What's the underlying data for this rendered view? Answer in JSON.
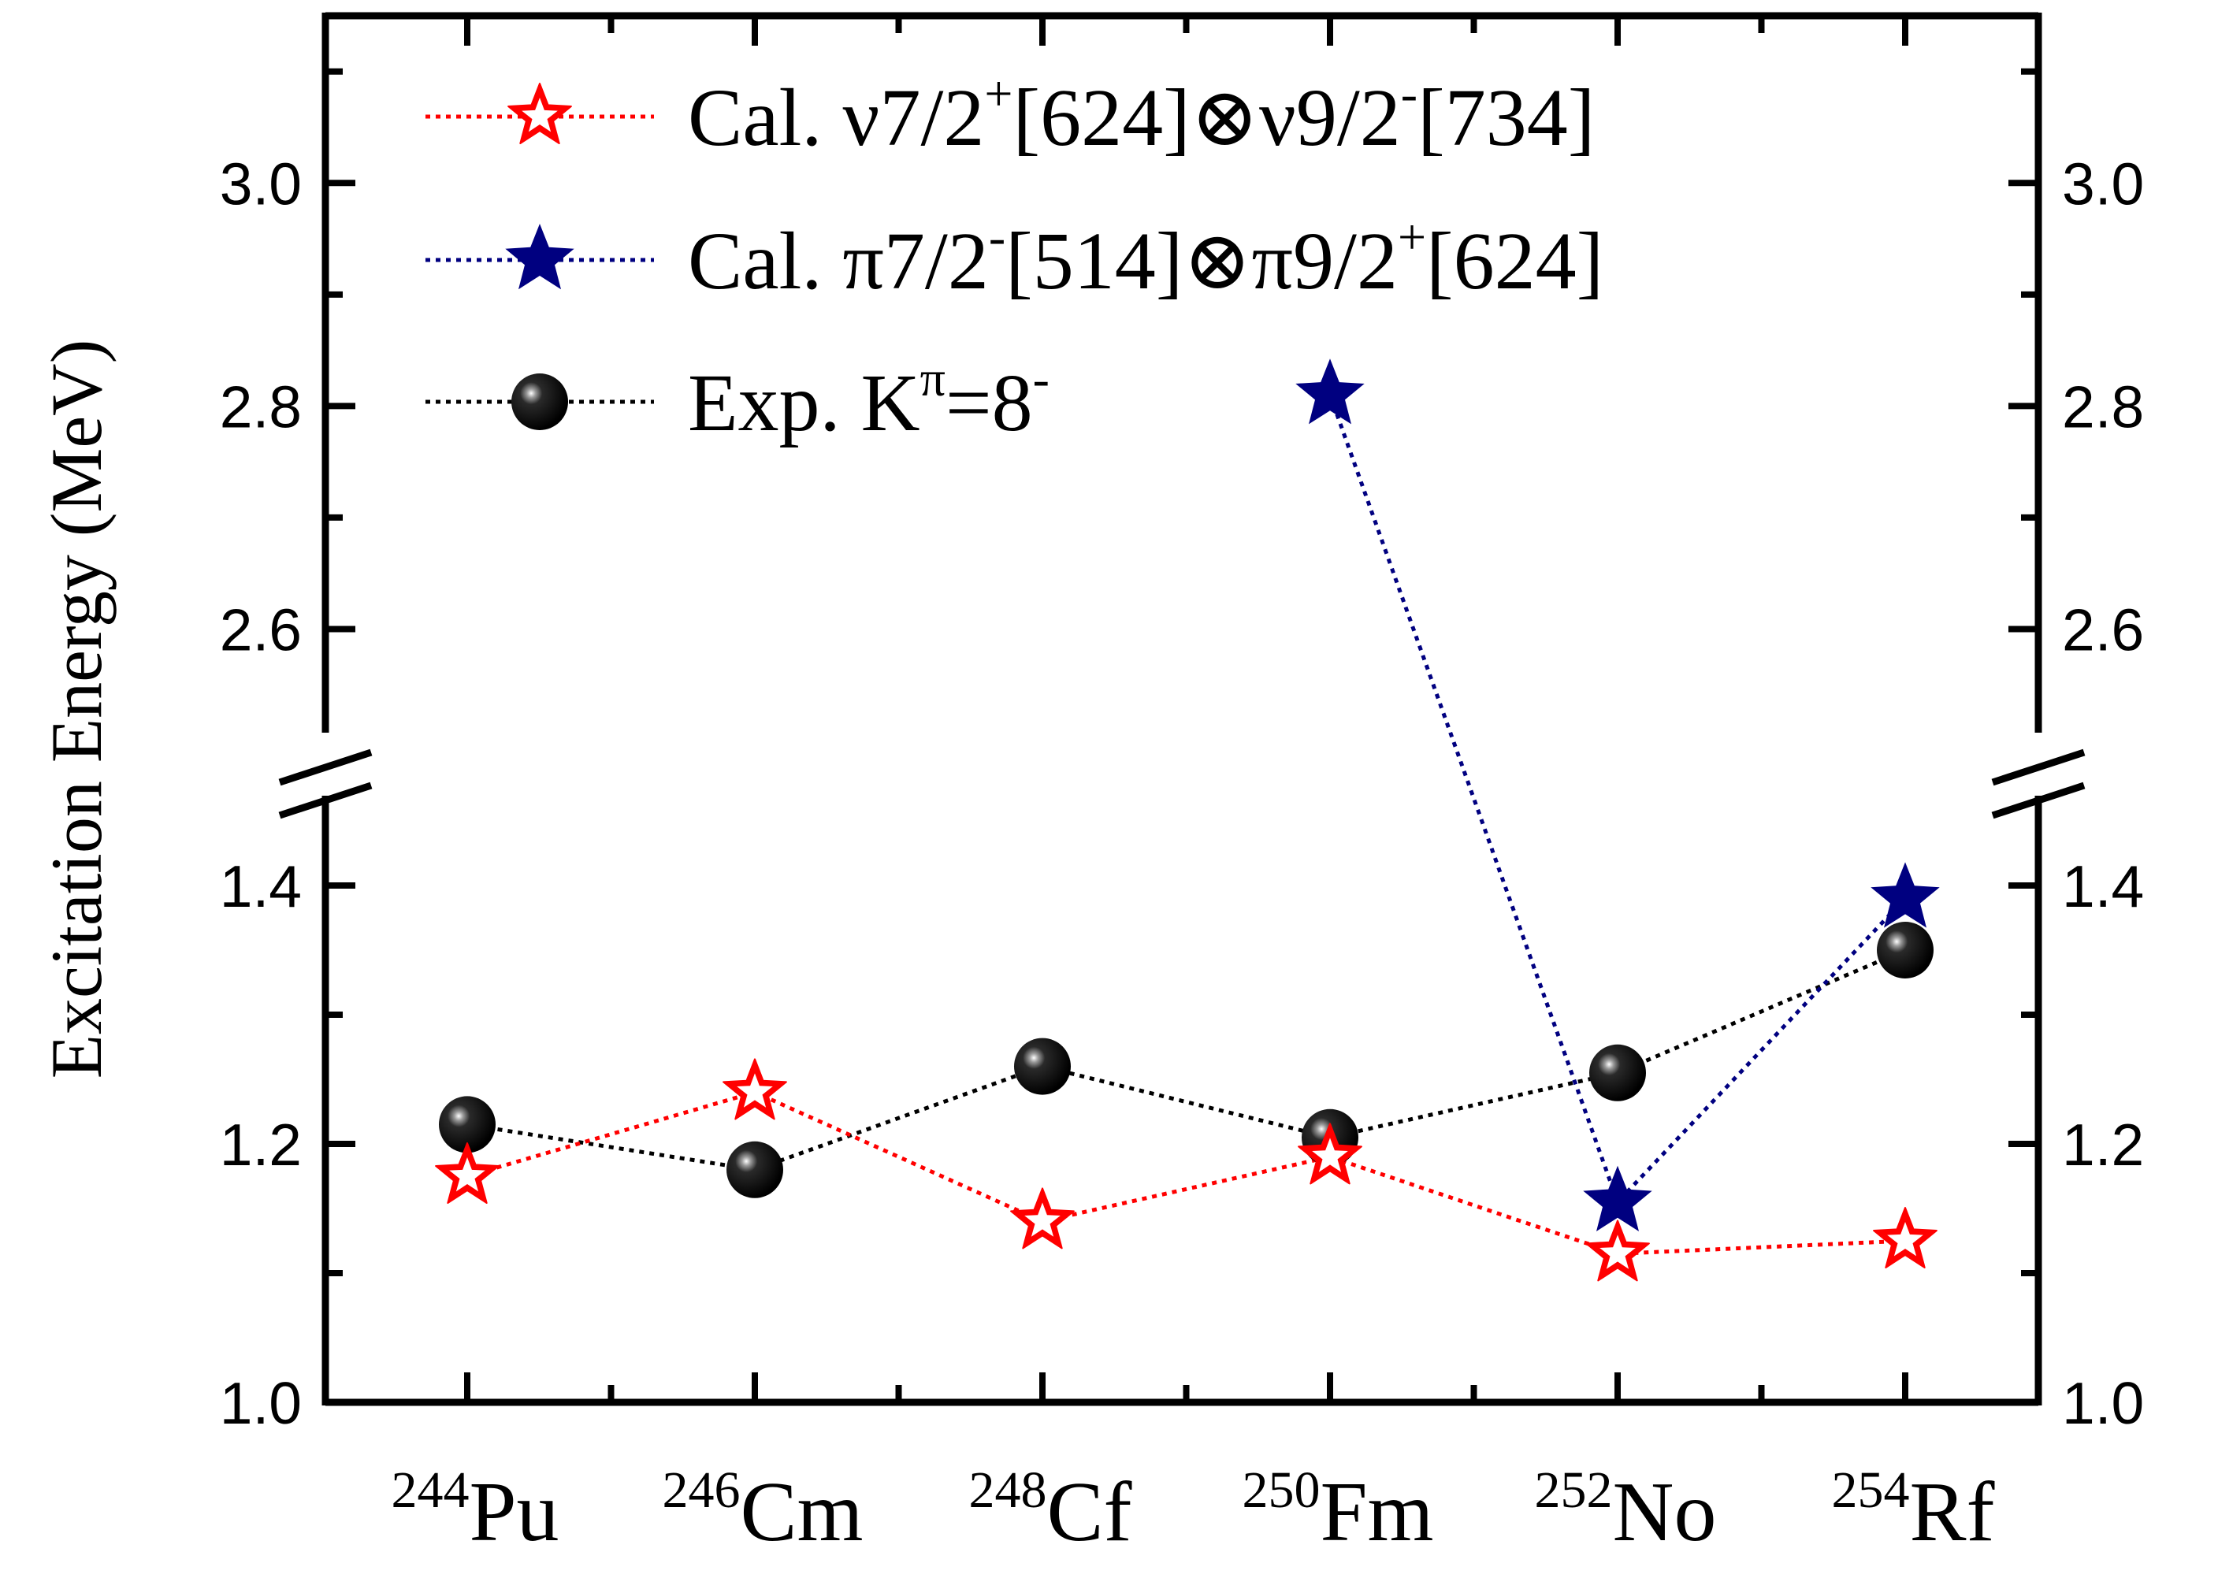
{
  "chart_data": {
    "type": "line",
    "title": "",
    "ylabel": "Excitation Energy (MeV)",
    "xlabel": "",
    "broken_axis": true,
    "lower_range": [
      1.0,
      1.5
    ],
    "upper_range": [
      2.5,
      3.15
    ],
    "y_tick_labels": [
      "1.0",
      "1.2",
      "1.4",
      "2.6",
      "2.8",
      "3.0"
    ],
    "y_tick_values": [
      1.0,
      1.2,
      1.4,
      2.6,
      2.8,
      3.0
    ],
    "categories": [
      {
        "mass": "244",
        "symbol": "Pu"
      },
      {
        "mass": "246",
        "symbol": "Cm"
      },
      {
        "mass": "248",
        "symbol": "Cf"
      },
      {
        "mass": "250",
        "symbol": "Fm"
      },
      {
        "mass": "252",
        "symbol": "No"
      },
      {
        "mass": "254",
        "symbol": "Rf"
      }
    ],
    "series": [
      {
        "name": "Cal. ν7/2+[624]⊗ν9/2-[734]",
        "color": "#ff0000",
        "marker": "open-star",
        "values": [
          1.175,
          1.24,
          1.14,
          1.19,
          1.115,
          1.125
        ]
      },
      {
        "name": "Cal. π7/2-[514]⊗π9/2+[624]",
        "color": "#000080",
        "marker": "filled-star",
        "values": [
          null,
          null,
          null,
          2.81,
          1.155,
          1.39
        ]
      },
      {
        "name": "Exp. Kπ=8-",
        "color": "#000000",
        "marker": "sphere",
        "values": [
          1.215,
          1.18,
          1.26,
          1.205,
          1.255,
          1.35
        ]
      }
    ],
    "legend": {
      "placement": "top-left",
      "entries": [
        {
          "prefix": "Cal. ν7/2",
          "sup1": "+",
          "mid": "[624]⊗ν9/2",
          "sup2": "-",
          "suffix": "[734]"
        },
        {
          "prefix": "Cal. π7/2",
          "sup1": "-",
          "mid": "[514]⊗π9/2",
          "sup2": "+",
          "suffix": "[624]"
        },
        {
          "prefix": "Exp. K",
          "sup1": "π",
          "mid": "=8",
          "sup2": "-",
          "suffix": ""
        }
      ]
    }
  }
}
